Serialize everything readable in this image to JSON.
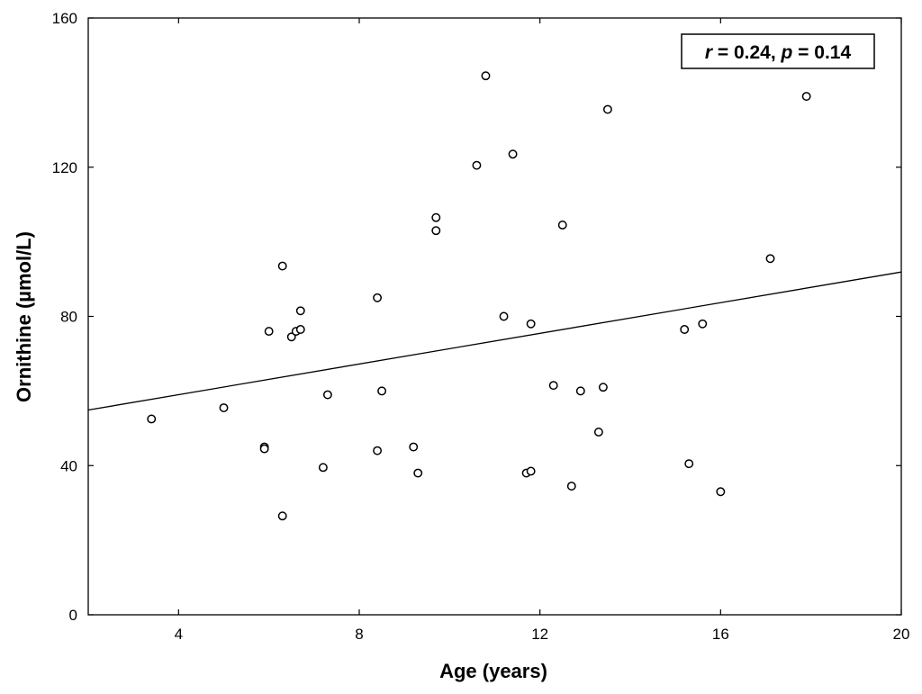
{
  "chart_data": {
    "type": "scatter",
    "title": "",
    "xlabel": "Age (years)",
    "ylabel": "Ornithine (µmol/L)",
    "xlim": [
      2,
      20
    ],
    "ylim": [
      0,
      160
    ],
    "xticks": [
      4,
      8,
      12,
      16,
      20
    ],
    "yticks": [
      0,
      40,
      80,
      120,
      160
    ],
    "grid": false,
    "annotation": {
      "r_symbol": "r",
      "r_value": " = 0.24, ",
      "p_symbol": "p",
      "p_value": " = 0.14",
      "placement": "top-right"
    },
    "colors": {
      "marker_stroke": "#000000",
      "marker_fill": "#ffffff",
      "line": "#000000",
      "axis": "#000000"
    },
    "regression": {
      "x": [
        2,
        20
      ],
      "y": [
        54.9,
        91.9
      ]
    },
    "points": [
      {
        "x": 3.4,
        "y": 52.5
      },
      {
        "x": 5.0,
        "y": 55.5
      },
      {
        "x": 5.9,
        "y": 45.0
      },
      {
        "x": 5.9,
        "y": 44.5
      },
      {
        "x": 6.0,
        "y": 76.0
      },
      {
        "x": 6.3,
        "y": 93.5
      },
      {
        "x": 6.3,
        "y": 26.5
      },
      {
        "x": 6.5,
        "y": 74.5
      },
      {
        "x": 6.6,
        "y": 76.0
      },
      {
        "x": 6.7,
        "y": 81.5
      },
      {
        "x": 6.7,
        "y": 76.5
      },
      {
        "x": 7.2,
        "y": 39.5
      },
      {
        "x": 7.3,
        "y": 59.0
      },
      {
        "x": 8.4,
        "y": 85.0
      },
      {
        "x": 8.4,
        "y": 44.0
      },
      {
        "x": 8.5,
        "y": 60.0
      },
      {
        "x": 9.2,
        "y": 45.0
      },
      {
        "x": 9.3,
        "y": 38.0
      },
      {
        "x": 9.7,
        "y": 106.5
      },
      {
        "x": 9.7,
        "y": 103.0
      },
      {
        "x": 10.6,
        "y": 120.5
      },
      {
        "x": 10.8,
        "y": 144.5
      },
      {
        "x": 11.2,
        "y": 80.0
      },
      {
        "x": 11.4,
        "y": 123.5
      },
      {
        "x": 11.7,
        "y": 38.0
      },
      {
        "x": 11.8,
        "y": 38.5
      },
      {
        "x": 11.8,
        "y": 78.0
      },
      {
        "x": 12.3,
        "y": 61.5
      },
      {
        "x": 12.5,
        "y": 104.5
      },
      {
        "x": 12.7,
        "y": 34.5
      },
      {
        "x": 12.9,
        "y": 60.0
      },
      {
        "x": 13.3,
        "y": 49.0
      },
      {
        "x": 13.4,
        "y": 61.0
      },
      {
        "x": 13.5,
        "y": 135.5
      },
      {
        "x": 15.2,
        "y": 76.5
      },
      {
        "x": 15.3,
        "y": 40.5
      },
      {
        "x": 15.6,
        "y": 78.0
      },
      {
        "x": 16.0,
        "y": 33.0
      },
      {
        "x": 17.1,
        "y": 95.5
      },
      {
        "x": 17.9,
        "y": 139.0
      }
    ]
  }
}
